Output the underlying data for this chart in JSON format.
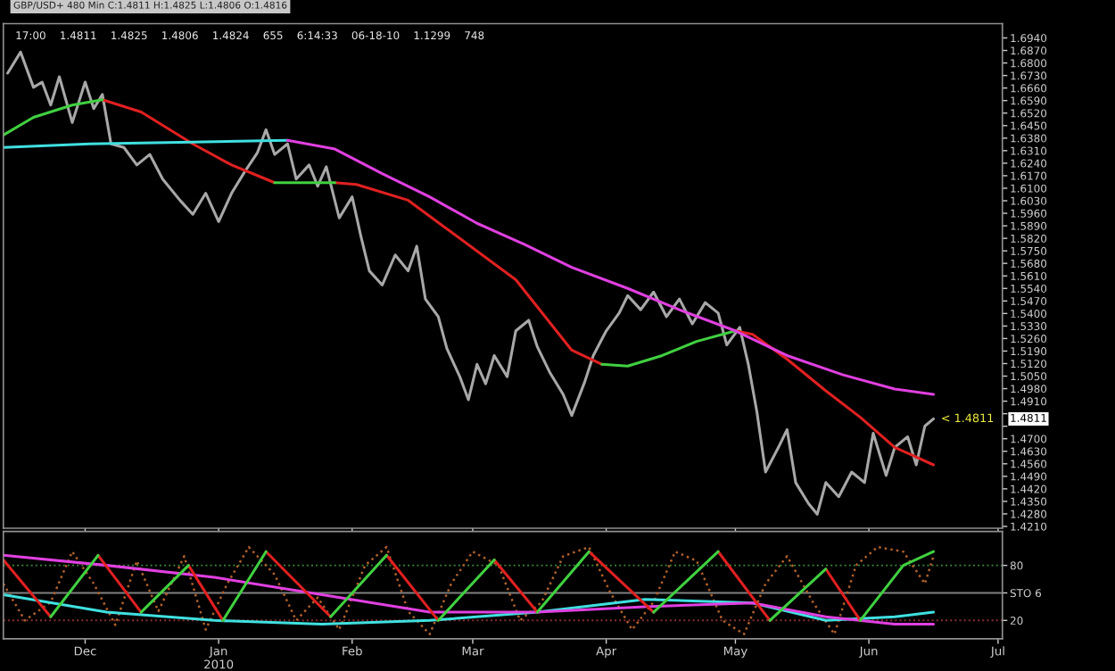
{
  "chart_data": [
    {
      "type": "line",
      "title": "GBP/USD+ 480 Min C:1.4811 H:1.4825 L:1.4806 O:1.4816",
      "subtitle": "17:00    1.4811    1.4825    1.4806    1.4824    655    6:14:33    06-18-10    1.1299    748",
      "xlim": [
        "2009-11-12",
        "2010-07-02"
      ],
      "ylim": [
        1.42,
        1.702
      ],
      "tick_labels": "y",
      "xticks": [
        {
          "value": "2009-12-01",
          "label": null
        },
        {
          "value": "2010-01-01",
          "label": null
        },
        {
          "value": "2010-02-01",
          "label": null
        },
        {
          "value": "2010-03-01",
          "label": null
        },
        {
          "value": "2010-04-01",
          "label": null
        },
        {
          "value": "2010-05-01",
          "label": null
        },
        {
          "value": "2010-06-01",
          "label": null
        },
        {
          "value": "2010-07-01",
          "label": null
        }
      ],
      "yticks": [
        {
          "value": 1.694,
          "label": "1.6940"
        },
        {
          "value": 1.687,
          "label": "1.6870"
        },
        {
          "value": 1.68,
          "label": "1.6800"
        },
        {
          "value": 1.673,
          "label": "1.6730"
        },
        {
          "value": 1.666,
          "label": "1.6660"
        },
        {
          "value": 1.659,
          "label": "1.6590"
        },
        {
          "value": 1.652,
          "label": "1.6520"
        },
        {
          "value": 1.645,
          "label": "1.6450"
        },
        {
          "value": 1.638,
          "label": "1.6380"
        },
        {
          "value": 1.631,
          "label": "1.6310"
        },
        {
          "value": 1.624,
          "label": "1.6240"
        },
        {
          "value": 1.617,
          "label": "1.6170"
        },
        {
          "value": 1.61,
          "label": "1.6100"
        },
        {
          "value": 1.603,
          "label": "1.6030"
        },
        {
          "value": 1.596,
          "label": "1.5960"
        },
        {
          "value": 1.589,
          "label": "1.5890"
        },
        {
          "value": 1.582,
          "label": "1.5820"
        },
        {
          "value": 1.575,
          "label": "1.5750"
        },
        {
          "value": 1.568,
          "label": "1.5680"
        },
        {
          "value": 1.561,
          "label": "1.5610"
        },
        {
          "value": 1.554,
          "label": "1.5540"
        },
        {
          "value": 1.547,
          "label": "1.5470"
        },
        {
          "value": 1.54,
          "label": "1.5400"
        },
        {
          "value": 1.533,
          "label": "1.5330"
        },
        {
          "value": 1.526,
          "label": "1.5260"
        },
        {
          "value": 1.519,
          "label": "1.5190"
        },
        {
          "value": 1.512,
          "label": "1.5120"
        },
        {
          "value": 1.505,
          "label": "1.5050"
        },
        {
          "value": 1.498,
          "label": "1.4980"
        },
        {
          "value": 1.491,
          "label": "1.4910"
        },
        {
          "value": 1.484,
          "label": null
        },
        {
          "value": 1.477,
          "label": null
        },
        {
          "value": 1.47,
          "label": "1.4700"
        },
        {
          "value": 1.463,
          "label": "1.4630"
        },
        {
          "value": 1.456,
          "label": "1.4560"
        },
        {
          "value": 1.449,
          "label": "1.4490"
        },
        {
          "value": 1.442,
          "label": "1.4420"
        },
        {
          "value": 1.435,
          "label": "1.4350"
        },
        {
          "value": 1.428,
          "label": "1.4280"
        },
        {
          "value": 1.421,
          "label": "1.4210"
        }
      ],
      "series": [
        {
          "color": "#a8a8a8",
          "x": [
            "2009-11-13",
            "2009-11-16",
            "2009-11-19",
            "2009-11-21",
            "2009-11-23",
            "2009-11-25",
            "2009-11-28",
            "2009-12-01",
            "2009-12-03",
            "2009-12-05",
            "2009-12-07",
            "2009-12-10",
            "2009-12-13",
            "2009-12-16",
            "2009-12-19",
            "2009-12-23",
            "2009-12-26",
            "2009-12-29",
            "2010-01-01",
            "2010-01-04",
            "2010-01-07",
            "2010-01-10",
            "2010-01-12",
            "2010-01-14",
            "2010-01-17",
            "2010-01-19",
            "2010-01-22",
            "2010-01-24",
            "2010-01-26",
            "2010-01-29",
            "2010-02-01",
            "2010-02-03",
            "2010-02-05",
            "2010-02-08",
            "2010-02-11",
            "2010-02-14",
            "2010-02-16",
            "2010-02-18",
            "2010-02-21",
            "2010-02-23",
            "2010-02-26",
            "2010-02-28",
            "2010-03-02",
            "2010-03-04",
            "2010-03-06",
            "2010-03-09",
            "2010-03-11",
            "2010-03-14",
            "2010-03-16",
            "2010-03-19",
            "2010-03-22",
            "2010-03-24",
            "2010-03-27",
            "2010-03-29",
            "2010-04-01",
            "2010-04-04",
            "2010-04-06",
            "2010-04-09",
            "2010-04-12",
            "2010-04-15",
            "2010-04-18",
            "2010-04-21",
            "2010-04-24",
            "2010-04-27",
            "2010-04-29",
            "2010-05-02",
            "2010-05-04",
            "2010-05-06",
            "2010-05-08",
            "2010-05-11",
            "2010-05-13",
            "2010-05-15",
            "2010-05-18",
            "2010-05-20",
            "2010-05-22",
            "2010-05-25",
            "2010-05-28",
            "2010-05-31",
            "2010-06-02",
            "2010-06-05",
            "2010-06-07",
            "2010-06-10",
            "2010-06-12",
            "2010-06-14",
            "2010-06-16"
          ],
          "values": [
            1.6743,
            1.6861,
            1.6664,
            1.6693,
            1.6565,
            1.6723,
            1.6467,
            1.6693,
            1.6545,
            1.6624,
            1.6348,
            1.6328,
            1.623,
            1.6289,
            1.6151,
            1.6033,
            1.5954,
            1.6072,
            1.5914,
            1.6072,
            1.619,
            1.6299,
            1.6427,
            1.6289,
            1.6348,
            1.6151,
            1.623,
            1.6112,
            1.622,
            1.5934,
            1.6052,
            1.5835,
            1.5638,
            1.5559,
            1.5727,
            1.5638,
            1.5776,
            1.5481,
            1.5382,
            1.5204,
            1.5047,
            1.4918,
            1.5116,
            1.5007,
            1.5165,
            1.5047,
            1.5303,
            1.5362,
            1.5214,
            1.5066,
            1.4948,
            1.483,
            1.5017,
            1.5165,
            1.5303,
            1.5402,
            1.55,
            1.5421,
            1.552,
            1.5382,
            1.5481,
            1.5342,
            1.5461,
            1.5402,
            1.5224,
            1.5323,
            1.5116,
            1.4849,
            1.4514,
            1.4652,
            1.4751,
            1.4455,
            1.4337,
            1.4278,
            1.4455,
            1.4376,
            1.4514,
            1.4455,
            1.4731,
            1.4495,
            1.4652,
            1.4711,
            1.4554,
            1.4771,
            1.4811
          ]
        },
        {
          "color": "#e02020",
          "x": [
            "2009-12-05",
            "2009-12-14",
            "2009-12-26",
            "2010-01-04",
            "2010-01-10",
            "2010-01-14"
          ],
          "values": [
            1.6595,
            1.6526,
            1.6348,
            1.623,
            1.6171,
            1.6131
          ]
        },
        {
          "color": "#e02020",
          "x": [
            "2010-01-28",
            "2010-02-02",
            "2010-02-14",
            "2010-02-24",
            "2010-03-11",
            "2010-03-24",
            "2010-03-31"
          ],
          "values": [
            1.6131,
            1.6121,
            1.6033,
            1.5855,
            1.5589,
            1.5195,
            1.5116
          ]
        },
        {
          "color": "#e02020",
          "x": [
            "2010-05-01",
            "2010-05-05",
            "2010-05-13",
            "2010-05-22",
            "2010-05-30",
            "2010-06-07",
            "2010-06-16"
          ],
          "values": [
            1.5303,
            1.5283,
            1.5145,
            1.4968,
            1.482,
            1.4652,
            1.4554
          ]
        },
        {
          "color": "#40d040",
          "x": [
            "2009-11-12",
            "2009-11-19",
            "2009-11-28",
            "2009-12-05"
          ],
          "values": [
            1.6397,
            1.6496,
            1.6565,
            1.6595
          ]
        },
        {
          "color": "#40d040",
          "x": [
            "2010-01-14",
            "2010-01-21",
            "2010-01-28"
          ],
          "values": [
            1.6131,
            1.6131,
            1.6131
          ]
        },
        {
          "color": "#40d040",
          "x": [
            "2010-03-31",
            "2010-04-06",
            "2010-04-14",
            "2010-04-22",
            "2010-05-01"
          ],
          "values": [
            1.5116,
            1.5106,
            1.5165,
            1.5244,
            1.5303
          ]
        },
        {
          "color": "#40e0e0",
          "x": [
            "2009-11-12",
            "2009-12-02",
            "2009-12-26",
            "2010-01-17"
          ],
          "values": [
            1.6328,
            1.6348,
            1.6358,
            1.6368
          ]
        },
        {
          "color": "#e040e0",
          "x": [
            "2010-01-17",
            "2010-01-28",
            "2010-02-08",
            "2010-02-19",
            "2010-03-02",
            "2010-03-13",
            "2010-03-24",
            "2010-04-06",
            "2010-04-18",
            "2010-05-01",
            "2010-05-13",
            "2010-05-26",
            "2010-06-07",
            "2010-06-16"
          ],
          "values": [
            1.6368,
            1.6319,
            1.6181,
            1.6052,
            1.5904,
            1.5786,
            1.5658,
            1.554,
            1.5421,
            1.5303,
            1.5165,
            1.5057,
            1.4978,
            1.4948
          ]
        }
      ],
      "annotations": [
        {
          "text": "< 1.4811",
          "x": "2010-06-16",
          "y": 1.4811
        },
        "1.4811"
      ]
    },
    {
      "type": "line",
      "xlim": [
        "2009-11-12",
        "2010-07-02"
      ],
      "ylim": [
        0,
        117
      ],
      "xticks": [
        {
          "value": "2009-12-01",
          "label": "Dec"
        },
        {
          "value": "2010-01-01",
          "label": "Jan\n2010"
        },
        {
          "value": "2010-02-01",
          "label": "Feb"
        },
        {
          "value": "2010-03-01",
          "label": "Mar"
        },
        {
          "value": "2010-04-01",
          "label": "Apr"
        },
        {
          "value": "2010-05-01",
          "label": "May"
        },
        {
          "value": "2010-06-01",
          "label": "Jun"
        },
        {
          "value": "2010-07-01",
          "label": "Jul"
        }
      ],
      "yticks": [
        80,
        {
          "value": 50,
          "label": "STO 6"
        },
        20
      ],
      "ref_lines": [
        {
          "axis": "y",
          "value": 80,
          "color": "#3c8c3c",
          "line_style": "dotted"
        },
        {
          "axis": "y",
          "value": 50,
          "color": "#808080",
          "line_style": "solid"
        },
        {
          "axis": "y",
          "value": 20,
          "color": "#8c3030",
          "line_style": "dotted"
        }
      ],
      "series": [
        {
          "color": "#b0602a",
          "line_style": "dotted",
          "x": [
            "2009-11-12",
            "2009-11-17",
            "2009-11-23",
            "2009-11-28",
            "2009-12-03",
            "2009-12-08",
            "2009-12-13",
            "2009-12-18",
            "2009-12-24",
            "2009-12-29",
            "2010-01-03",
            "2010-01-08",
            "2010-01-14",
            "2010-01-19",
            "2010-01-24",
            "2010-01-29",
            "2010-02-04",
            "2010-02-09",
            "2010-02-14",
            "2010-02-19",
            "2010-02-24",
            "2010-03-01",
            "2010-03-07",
            "2010-03-12",
            "2010-03-17",
            "2010-03-22",
            "2010-03-28",
            "2010-04-02",
            "2010-04-07",
            "2010-04-12",
            "2010-04-17",
            "2010-04-22",
            "2010-04-28",
            "2010-05-03",
            "2010-05-08",
            "2010-05-13",
            "2010-05-19",
            "2010-05-24",
            "2010-05-29",
            "2010-06-03",
            "2010-06-09",
            "2010-06-14",
            "2010-06-16"
          ],
          "values": [
            60,
            20,
            40,
            95,
            60,
            15,
            85,
            30,
            90,
            10,
            60,
            100,
            70,
            20,
            45,
            10,
            80,
            100,
            30,
            5,
            60,
            95,
            80,
            20,
            40,
            90,
            100,
            50,
            10,
            40,
            95,
            85,
            20,
            5,
            60,
            90,
            40,
            5,
            80,
            100,
            95,
            60,
            90
          ]
        },
        {
          "color": "#40e0e0",
          "x": [
            "2009-11-12",
            "2009-12-06",
            "2009-12-31",
            "2010-01-25",
            "2010-02-19",
            "2010-03-16",
            "2010-04-10",
            "2010-05-05",
            "2010-05-22",
            "2010-06-07",
            "2010-06-16"
          ],
          "values": [
            48,
            29,
            20,
            16,
            20,
            29,
            43,
            39,
            20,
            24,
            29
          ]
        },
        {
          "color": "#e040e0",
          "x": [
            "2009-11-12",
            "2009-12-06",
            "2009-12-31",
            "2010-01-25",
            "2010-02-19",
            "2010-03-16",
            "2010-04-10",
            "2010-05-05",
            "2010-05-22",
            "2010-06-07",
            "2010-06-16"
          ],
          "values": [
            91,
            80,
            67,
            48,
            29,
            29,
            35,
            39,
            24,
            16,
            16
          ]
        },
        {
          "color": "#e02020",
          "x": [
            "2009-11-12",
            "2009-11-23"
          ],
          "values": [
            86,
            24
          ]
        },
        {
          "color": "#e02020",
          "x": [
            "2009-12-04",
            "2009-12-14"
          ],
          "values": [
            91,
            29
          ]
        },
        {
          "color": "#e02020",
          "x": [
            "2009-12-25",
            "2010-01-02"
          ],
          "values": [
            80,
            20
          ]
        },
        {
          "color": "#e02020",
          "x": [
            "2010-01-12",
            "2010-01-27"
          ],
          "values": [
            95,
            24
          ]
        },
        {
          "color": "#e02020",
          "x": [
            "2010-02-09",
            "2010-02-21"
          ],
          "values": [
            91,
            20
          ]
        },
        {
          "color": "#e02020",
          "x": [
            "2010-03-06",
            "2010-03-16"
          ],
          "values": [
            86,
            29
          ]
        },
        {
          "color": "#e02020",
          "x": [
            "2010-03-28",
            "2010-04-12"
          ],
          "values": [
            95,
            29
          ]
        },
        {
          "color": "#e02020",
          "x": [
            "2010-04-27",
            "2010-05-09"
          ],
          "values": [
            95,
            20
          ]
        },
        {
          "color": "#e02020",
          "x": [
            "2010-05-22",
            "2010-05-30"
          ],
          "values": [
            76,
            20
          ]
        },
        {
          "color": "#40d040",
          "x": [
            "2009-11-23",
            "2009-12-04"
          ],
          "values": [
            24,
            91
          ]
        },
        {
          "color": "#40d040",
          "x": [
            "2009-12-14",
            "2009-12-25"
          ],
          "values": [
            29,
            80
          ]
        },
        {
          "color": "#40d040",
          "x": [
            "2010-01-02",
            "2010-01-12"
          ],
          "values": [
            20,
            95
          ]
        },
        {
          "color": "#40d040",
          "x": [
            "2010-01-27",
            "2010-02-09"
          ],
          "values": [
            24,
            91
          ]
        },
        {
          "color": "#40d040",
          "x": [
            "2010-02-21",
            "2010-03-06"
          ],
          "values": [
            20,
            86
          ]
        },
        {
          "color": "#40d040",
          "x": [
            "2010-03-16",
            "2010-03-28"
          ],
          "values": [
            29,
            95
          ]
        },
        {
          "color": "#40d040",
          "x": [
            "2010-04-12",
            "2010-04-27"
          ],
          "values": [
            29,
            95
          ]
        },
        {
          "color": "#40d040",
          "x": [
            "2010-05-09",
            "2010-05-22"
          ],
          "values": [
            20,
            76
          ]
        },
        {
          "color": "#40d040",
          "x": [
            "2010-05-30",
            "2010-06-09",
            "2010-06-16"
          ],
          "values": [
            20,
            80,
            95
          ]
        }
      ]
    }
  ]
}
